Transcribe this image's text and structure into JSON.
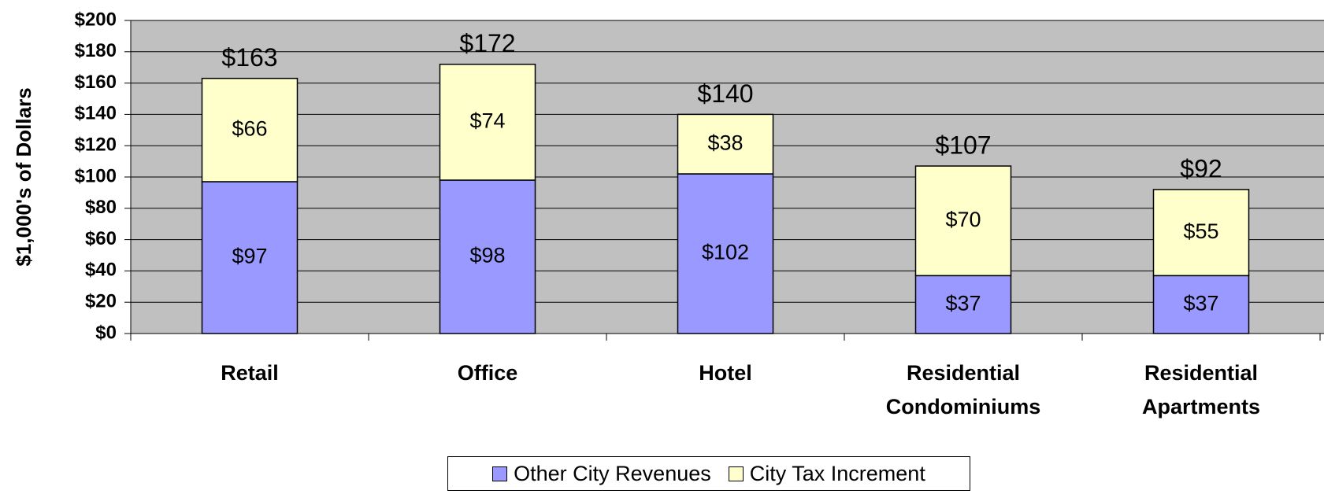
{
  "chart_data": {
    "type": "stacked_bar",
    "y_label": "$1,000's of Dollars",
    "categories": [
      "Retail",
      "Office",
      "Hotel",
      "Residential Condominiums",
      "Residential Apartments"
    ],
    "series": [
      {
        "name": "Other City Revenues",
        "color": "#9999ff",
        "values": [
          97,
          98,
          102,
          37,
          37
        ],
        "value_labels": [
          "$97",
          "$98",
          "$102",
          "$37",
          "$37"
        ]
      },
      {
        "name": "City Tax Increment",
        "color": "#ffffcc",
        "values": [
          66,
          74,
          38,
          70,
          55
        ],
        "value_labels": [
          "$66",
          "$74",
          "$38",
          "$70",
          "$55"
        ]
      }
    ],
    "totals": [
      163,
      172,
      140,
      107,
      92
    ],
    "total_labels": [
      "$163",
      "$172",
      "$140",
      "$107",
      "$92"
    ],
    "ylim": [
      0,
      200
    ],
    "yticks": [
      {
        "value": 0,
        "label": "$0"
      },
      {
        "value": 20,
        "label": "$20"
      },
      {
        "value": 40,
        "label": "$40"
      },
      {
        "value": 60,
        "label": "$60"
      },
      {
        "value": 80,
        "label": "$80"
      },
      {
        "value": 100,
        "label": "$100"
      },
      {
        "value": 120,
        "label": "$120"
      },
      {
        "value": 140,
        "label": "$140"
      },
      {
        "value": 160,
        "label": "$160"
      },
      {
        "value": 180,
        "label": "$180"
      },
      {
        "value": 200,
        "label": "$200"
      }
    ],
    "grid": true,
    "plot_background": "#c0c0c0",
    "legend": "bottom"
  }
}
